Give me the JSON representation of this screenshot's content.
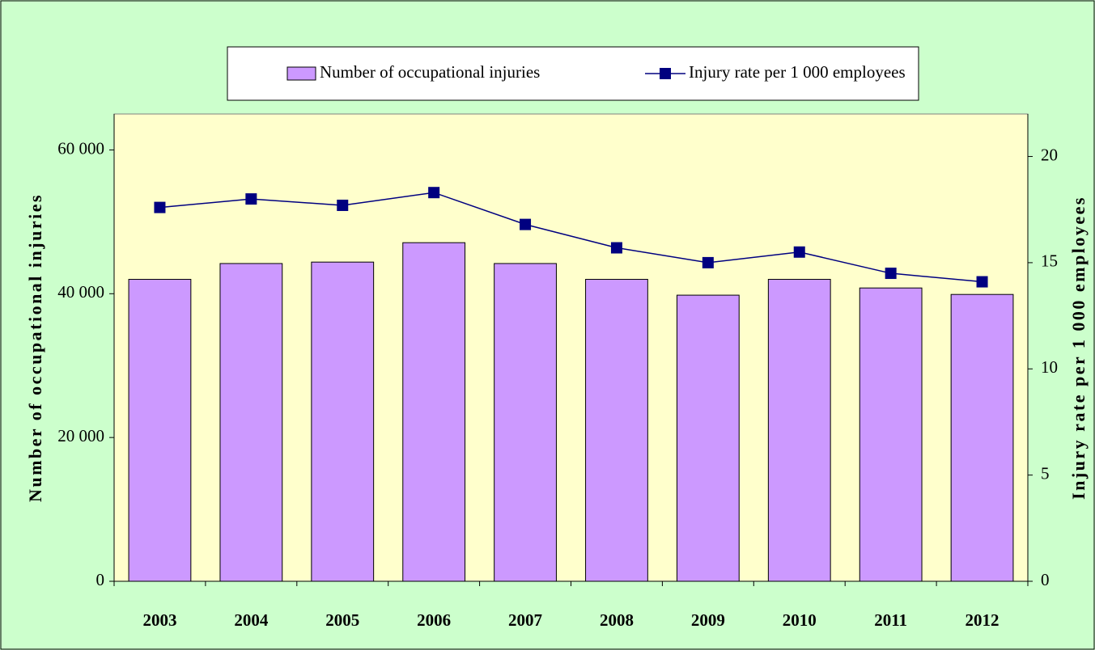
{
  "chart_data": {
    "type": "bar-line",
    "categories": [
      "2003",
      "2004",
      "2005",
      "2006",
      "2007",
      "2008",
      "2009",
      "2010",
      "2011",
      "2012"
    ],
    "series": [
      {
        "name": "Number of occupational injuries",
        "type": "bar",
        "color": "#cc99ff",
        "axis": "y",
        "values": [
          42000,
          44200,
          44400,
          47100,
          44200,
          42000,
          39800,
          42000,
          40800,
          39900
        ]
      },
      {
        "name": "Injury rate per 1 000 employees",
        "type": "line",
        "color": "#000080",
        "axis": "y2",
        "values": [
          17.6,
          18.0,
          17.7,
          18.3,
          16.8,
          15.7,
          15.0,
          15.5,
          14.5,
          14.1
        ]
      }
    ],
    "y_label": "Number of occupational injuries",
    "y2_label": "Injury rate per 1 000 employees",
    "ylim": [
      0,
      65000
    ],
    "yticks": [
      0,
      {
        "value": 20000,
        "label": "20 000"
      },
      {
        "value": 40000,
        "label": "40 000"
      },
      {
        "value": 60000,
        "label": "60 000"
      }
    ],
    "y2lim": [
      0,
      22
    ],
    "y2ticks": [
      0,
      5,
      10,
      15,
      20
    ],
    "legend": "top"
  }
}
